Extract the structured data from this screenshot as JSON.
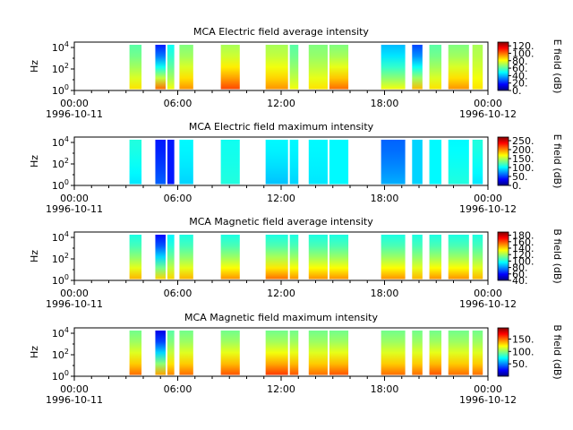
{
  "chart_data": [
    {
      "type": "heatmap",
      "title": "MCA  Electric field average intensity",
      "ylabel": "Hz",
      "colorbar_label": "E field (dB)",
      "colorbar_ticks": [
        "0.",
        "20.",
        "40.",
        "60.",
        "80.",
        "100.",
        "120."
      ],
      "colorbar_range": [
        0,
        130
      ],
      "xtick_labels": [
        "00:00\n1996-10-11",
        "06:00",
        "12:00",
        "18:00",
        "00:00\n1996-10-12"
      ],
      "xlim_hours": [
        0,
        24
      ],
      "ylim_log10": [
        0,
        4.5
      ],
      "ytick_labels": [
        "10^0",
        "10^2",
        "10^4"
      ],
      "data_segments_hours": [
        [
          3.2,
          3.9
        ],
        [
          4.7,
          5.3
        ],
        [
          5.4,
          5.8
        ],
        [
          6.1,
          6.9
        ],
        [
          8.5,
          9.6
        ],
        [
          11.1,
          12.4
        ],
        [
          12.5,
          13.0
        ],
        [
          13.6,
          14.7
        ],
        [
          14.8,
          15.9
        ],
        [
          17.8,
          19.2
        ],
        [
          19.6,
          20.2
        ],
        [
          20.6,
          21.3
        ],
        [
          21.7,
          22.9
        ],
        [
          23.1,
          23.7
        ]
      ],
      "low_freq_intensity_db": [
        85,
        100,
        80,
        95,
        105,
        95,
        80,
        85,
        100,
        80,
        90,
        85,
        95,
        85
      ],
      "high_freq_intensity_db": [
        60,
        20,
        50,
        65,
        70,
        70,
        60,
        65,
        65,
        40,
        25,
        60,
        65,
        70
      ]
    },
    {
      "type": "heatmap",
      "title": "MCA  Electric field maximum intensity",
      "ylabel": "Hz",
      "colorbar_label": "E field (dB)",
      "colorbar_ticks": [
        "0.",
        "50.",
        "100.",
        "150.",
        "200.",
        "250."
      ],
      "colorbar_range": [
        0,
        270
      ],
      "xtick_labels": [
        "00:00\n1996-10-11",
        "06:00",
        "12:00",
        "18:00",
        "00:00\n1996-10-12"
      ],
      "xlim_hours": [
        0,
        24
      ],
      "ylim_log10": [
        0,
        4.5
      ],
      "ytick_labels": [
        "10^0",
        "10^2",
        "10^4"
      ],
      "data_segments_hours": [
        [
          3.2,
          3.9
        ],
        [
          4.7,
          5.3
        ],
        [
          5.4,
          5.8
        ],
        [
          6.1,
          6.9
        ],
        [
          8.5,
          9.6
        ],
        [
          11.1,
          12.4
        ],
        [
          12.5,
          13.0
        ],
        [
          13.6,
          14.7
        ],
        [
          14.8,
          15.9
        ],
        [
          17.8,
          19.2
        ],
        [
          19.6,
          20.2
        ],
        [
          20.6,
          21.3
        ],
        [
          21.7,
          22.9
        ],
        [
          23.1,
          23.7
        ]
      ],
      "low_freq_intensity_db": [
        95,
        60,
        40,
        90,
        110,
        85,
        90,
        95,
        100,
        80,
        90,
        100,
        110,
        95
      ],
      "high_freq_intensity_db": [
        110,
        40,
        40,
        100,
        105,
        100,
        100,
        100,
        100,
        60,
        90,
        100,
        100,
        110
      ]
    },
    {
      "type": "heatmap",
      "title": "MCA  Magnetic field average intensity",
      "ylabel": "Hz",
      "colorbar_label": "B field (dB)",
      "colorbar_ticks": [
        "40.",
        "60.",
        "80.",
        "100.",
        "120.",
        "140.",
        "160.",
        "180."
      ],
      "colorbar_range": [
        40,
        190
      ],
      "xtick_labels": [
        "00:00\n1996-10-11",
        "06:00",
        "12:00",
        "18:00",
        "00:00\n1996-10-12"
      ],
      "xlim_hours": [
        0,
        24
      ],
      "ylim_log10": [
        0,
        4.5
      ],
      "ytick_labels": [
        "10^0",
        "10^2",
        "10^4"
      ],
      "data_segments_hours": [
        [
          3.2,
          3.9
        ],
        [
          4.7,
          5.3
        ],
        [
          5.4,
          5.8
        ],
        [
          6.1,
          6.9
        ],
        [
          8.5,
          9.6
        ],
        [
          11.1,
          12.4
        ],
        [
          12.5,
          13.0
        ],
        [
          13.6,
          14.7
        ],
        [
          14.8,
          15.9
        ],
        [
          17.8,
          19.2
        ],
        [
          19.6,
          20.2
        ],
        [
          20.6,
          21.3
        ],
        [
          21.7,
          22.9
        ],
        [
          23.1,
          23.7
        ]
      ],
      "low_freq_intensity_db": [
        145,
        140,
        140,
        145,
        150,
        155,
        150,
        150,
        150,
        150,
        145,
        150,
        150,
        145
      ],
      "high_freq_intensity_db": [
        100,
        60,
        95,
        100,
        100,
        100,
        100,
        100,
        100,
        100,
        100,
        100,
        100,
        100
      ]
    },
    {
      "type": "heatmap",
      "title": "MCA  Magnetic field maximum intensity",
      "ylabel": "Hz",
      "colorbar_label": "B field (dB)",
      "colorbar_ticks": [
        "50.",
        "100.",
        "150."
      ],
      "colorbar_range": [
        0,
        195
      ],
      "xtick_labels": [
        "00:00\n1996-10-11",
        "06:00",
        "12:00",
        "18:00",
        "00:00\n1996-10-12"
      ],
      "xlim_hours": [
        0,
        24
      ],
      "ylim_log10": [
        0,
        4.5
      ],
      "ytick_labels": [
        "10^0",
        "10^2",
        "10^4"
      ],
      "data_segments_hours": [
        [
          3.2,
          3.9
        ],
        [
          4.7,
          5.3
        ],
        [
          5.4,
          5.8
        ],
        [
          6.1,
          6.9
        ],
        [
          8.5,
          9.6
        ],
        [
          11.1,
          12.4
        ],
        [
          12.5,
          13.0
        ],
        [
          13.6,
          14.7
        ],
        [
          14.8,
          15.9
        ],
        [
          17.8,
          19.2
        ],
        [
          19.6,
          20.2
        ],
        [
          20.6,
          21.3
        ],
        [
          21.7,
          22.9
        ],
        [
          23.1,
          23.7
        ]
      ],
      "low_freq_intensity_db": [
        150,
        140,
        145,
        150,
        155,
        160,
        155,
        150,
        155,
        150,
        150,
        155,
        150,
        150
      ],
      "high_freq_intensity_db": [
        95,
        20,
        90,
        95,
        95,
        95,
        95,
        95,
        95,
        95,
        95,
        95,
        95,
        95
      ]
    }
  ]
}
